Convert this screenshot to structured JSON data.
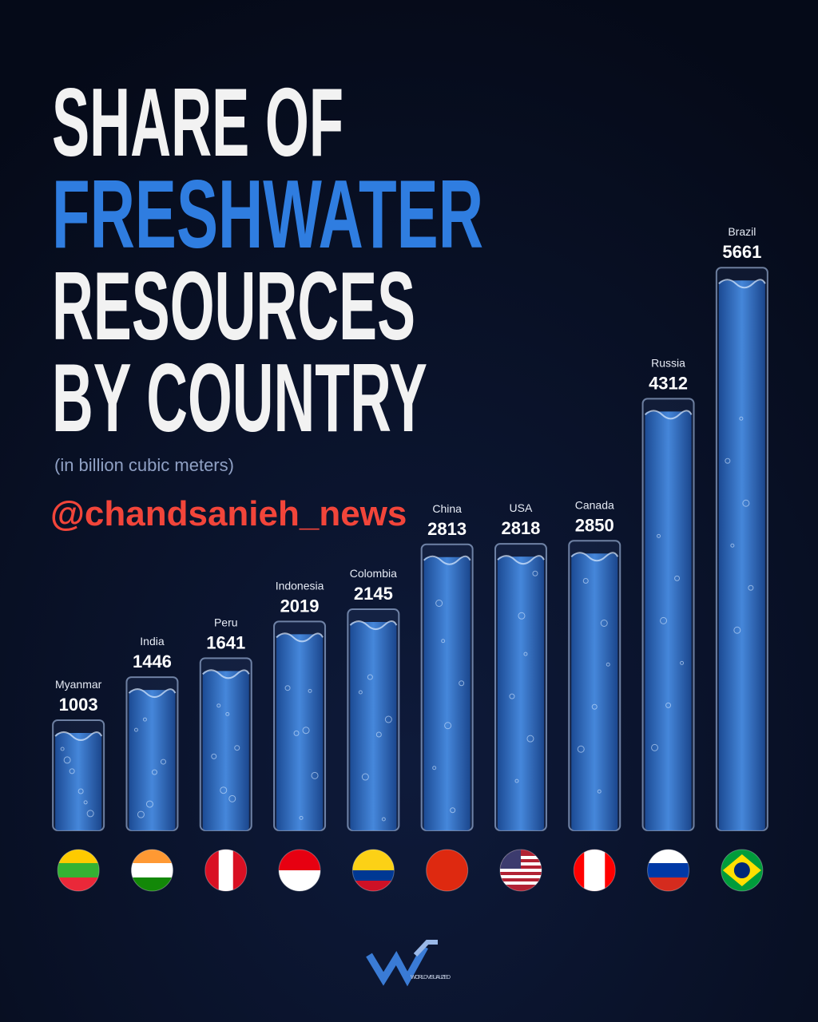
{
  "chart_data": {
    "type": "bar",
    "title_lines": [
      "SHARE OF",
      "FRESHWATER",
      "RESOURCES",
      "BY COUNTRY"
    ],
    "subtitle": "(in billion cubic meters)",
    "handle": "@chandsanieh_news",
    "logo_text": "WORLD VISUALIZED",
    "categories": [
      "Myanmar",
      "India",
      "Peru",
      "Indonesia",
      "Colombia",
      "China",
      "USA",
      "Canada",
      "Russia",
      "Brazil"
    ],
    "values": [
      1003,
      1446,
      1641,
      2019,
      2145,
      2813,
      2818,
      2850,
      4312,
      5661
    ],
    "color": "#2f78d6",
    "ylim": [
      0,
      6000
    ]
  }
}
